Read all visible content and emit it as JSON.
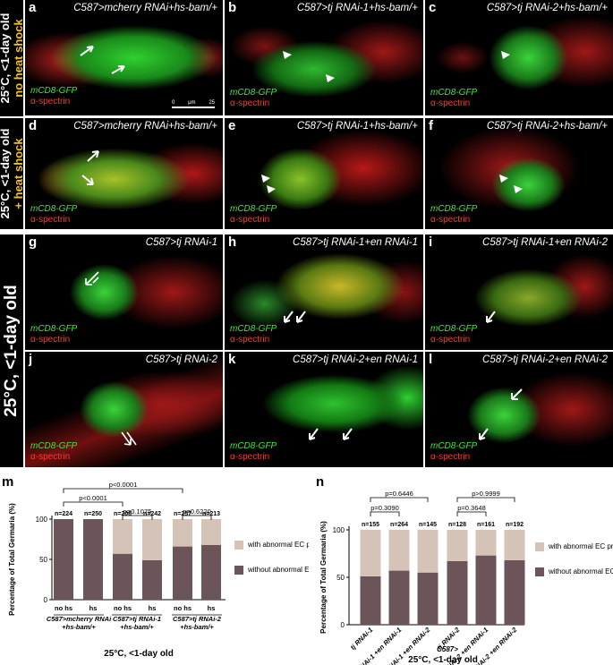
{
  "rows": {
    "row1": {
      "temp": "25°C, <1-day old",
      "treatment": "no heat shock",
      "treatment_color": "#f2c12e"
    },
    "row2": {
      "temp": "25°C, <1-day old",
      "treatment": "+ heat shock",
      "treatment_color": "#f2c12e"
    },
    "rows34": {
      "label": "25°C, <1-day old"
    }
  },
  "stain": {
    "gfp": "mCD8-GFP",
    "spectrin": "α-spectrin"
  },
  "scale": {
    "zero": "0",
    "unit": "μm",
    "max": "25"
  },
  "panels": {
    "a": {
      "letter": "a",
      "title": "C587>mcherry RNAi+hs-bam/+"
    },
    "b": {
      "letter": "b",
      "title": "C587>tj RNAi-1+hs-bam/+"
    },
    "c": {
      "letter": "c",
      "title": "C587>tj RNAi-2+hs-bam/+"
    },
    "d": {
      "letter": "d",
      "title": "C587>mcherry RNAi+hs-bam/+"
    },
    "e": {
      "letter": "e",
      "title": "C587>tj RNAi-1+hs-bam/+"
    },
    "f": {
      "letter": "f",
      "title": "C587>tj RNAi-2+hs-bam/+"
    },
    "g": {
      "letter": "g",
      "title": "C587>tj RNAi-1"
    },
    "h": {
      "letter": "h",
      "title": "C587>tj RNAi-1+en RNAi-1"
    },
    "i": {
      "letter": "i",
      "title": "C587>tj RNAi-1+en RNAi-2"
    },
    "j": {
      "letter": "j",
      "title": "C587>tj RNAi-2"
    },
    "k": {
      "letter": "k",
      "title": "C587>tj RNAi-2+en RNAi-1"
    },
    "l": {
      "letter": "l",
      "title": "C587>tj RNAi-2+en RNAi-2"
    }
  },
  "chart_data": [
    {
      "panel": "m",
      "type": "bar",
      "stacked": true,
      "ylabel": "Percentage of Total Germaria (%)",
      "xlabel": "25°C, <1-day old",
      "ylim": [
        0,
        100
      ],
      "yticks": [
        0,
        50,
        100
      ],
      "categories": [
        "no hs",
        "hs",
        "no hs",
        "hs",
        "no hs",
        "hs"
      ],
      "groups": [
        "C587>mcherry RNAi+hs-bam/+",
        "C587>tj RNAi-1 +hs-bam/+",
        "C587>tj RNAi-2 +hs-bam/+"
      ],
      "n": [
        "n=224",
        "n=250",
        "n=206",
        "n=242",
        "n=257",
        "n=213"
      ],
      "series": [
        {
          "name": "without abnormal EC protrusions",
          "color": "#6b5558",
          "values": [
            100,
            100,
            57,
            49,
            66,
            68
          ]
        },
        {
          "name": "with abnormal EC protrusions",
          "color": "#d5c3b8",
          "values": [
            0,
            0,
            43,
            51,
            34,
            32
          ]
        }
      ],
      "pvalues": [
        "p<0.0001",
        "p<0.0001",
        "p=0.1075",
        "p=0.6220"
      ]
    },
    {
      "panel": "n",
      "type": "bar",
      "stacked": true,
      "ylabel": "Percentage of Total Germaria (%)",
      "xlabel": "25°C, <1-day old",
      "group_label": "C587>",
      "ylim": [
        0,
        100
      ],
      "yticks": [
        0,
        50,
        100
      ],
      "categories": [
        "tj RNAi-1",
        "tj RNAi-1 +en RNAi-1",
        "tj RNAi-1 +en RNAi-2",
        "tj RNAi-2",
        "tj RNAi-2 +en RNAi-1",
        "tj RNAi-2 +en RNAi-2"
      ],
      "n": [
        "n=155",
        "n=264",
        "n=145",
        "n=128",
        "n=161",
        "n=192"
      ],
      "series": [
        {
          "name": "without abnormal EC protrusions",
          "color": "#6b5558",
          "values": [
            51,
            57,
            55,
            67,
            73,
            68
          ]
        },
        {
          "name": "with abnormal EC protrusions",
          "color": "#d5c3b8",
          "values": [
            49,
            43,
            45,
            33,
            27,
            32
          ]
        }
      ],
      "pvalues": [
        "p=0.6446",
        "p=0.3090",
        "p>0.9999",
        "p=0.3648"
      ]
    }
  ]
}
